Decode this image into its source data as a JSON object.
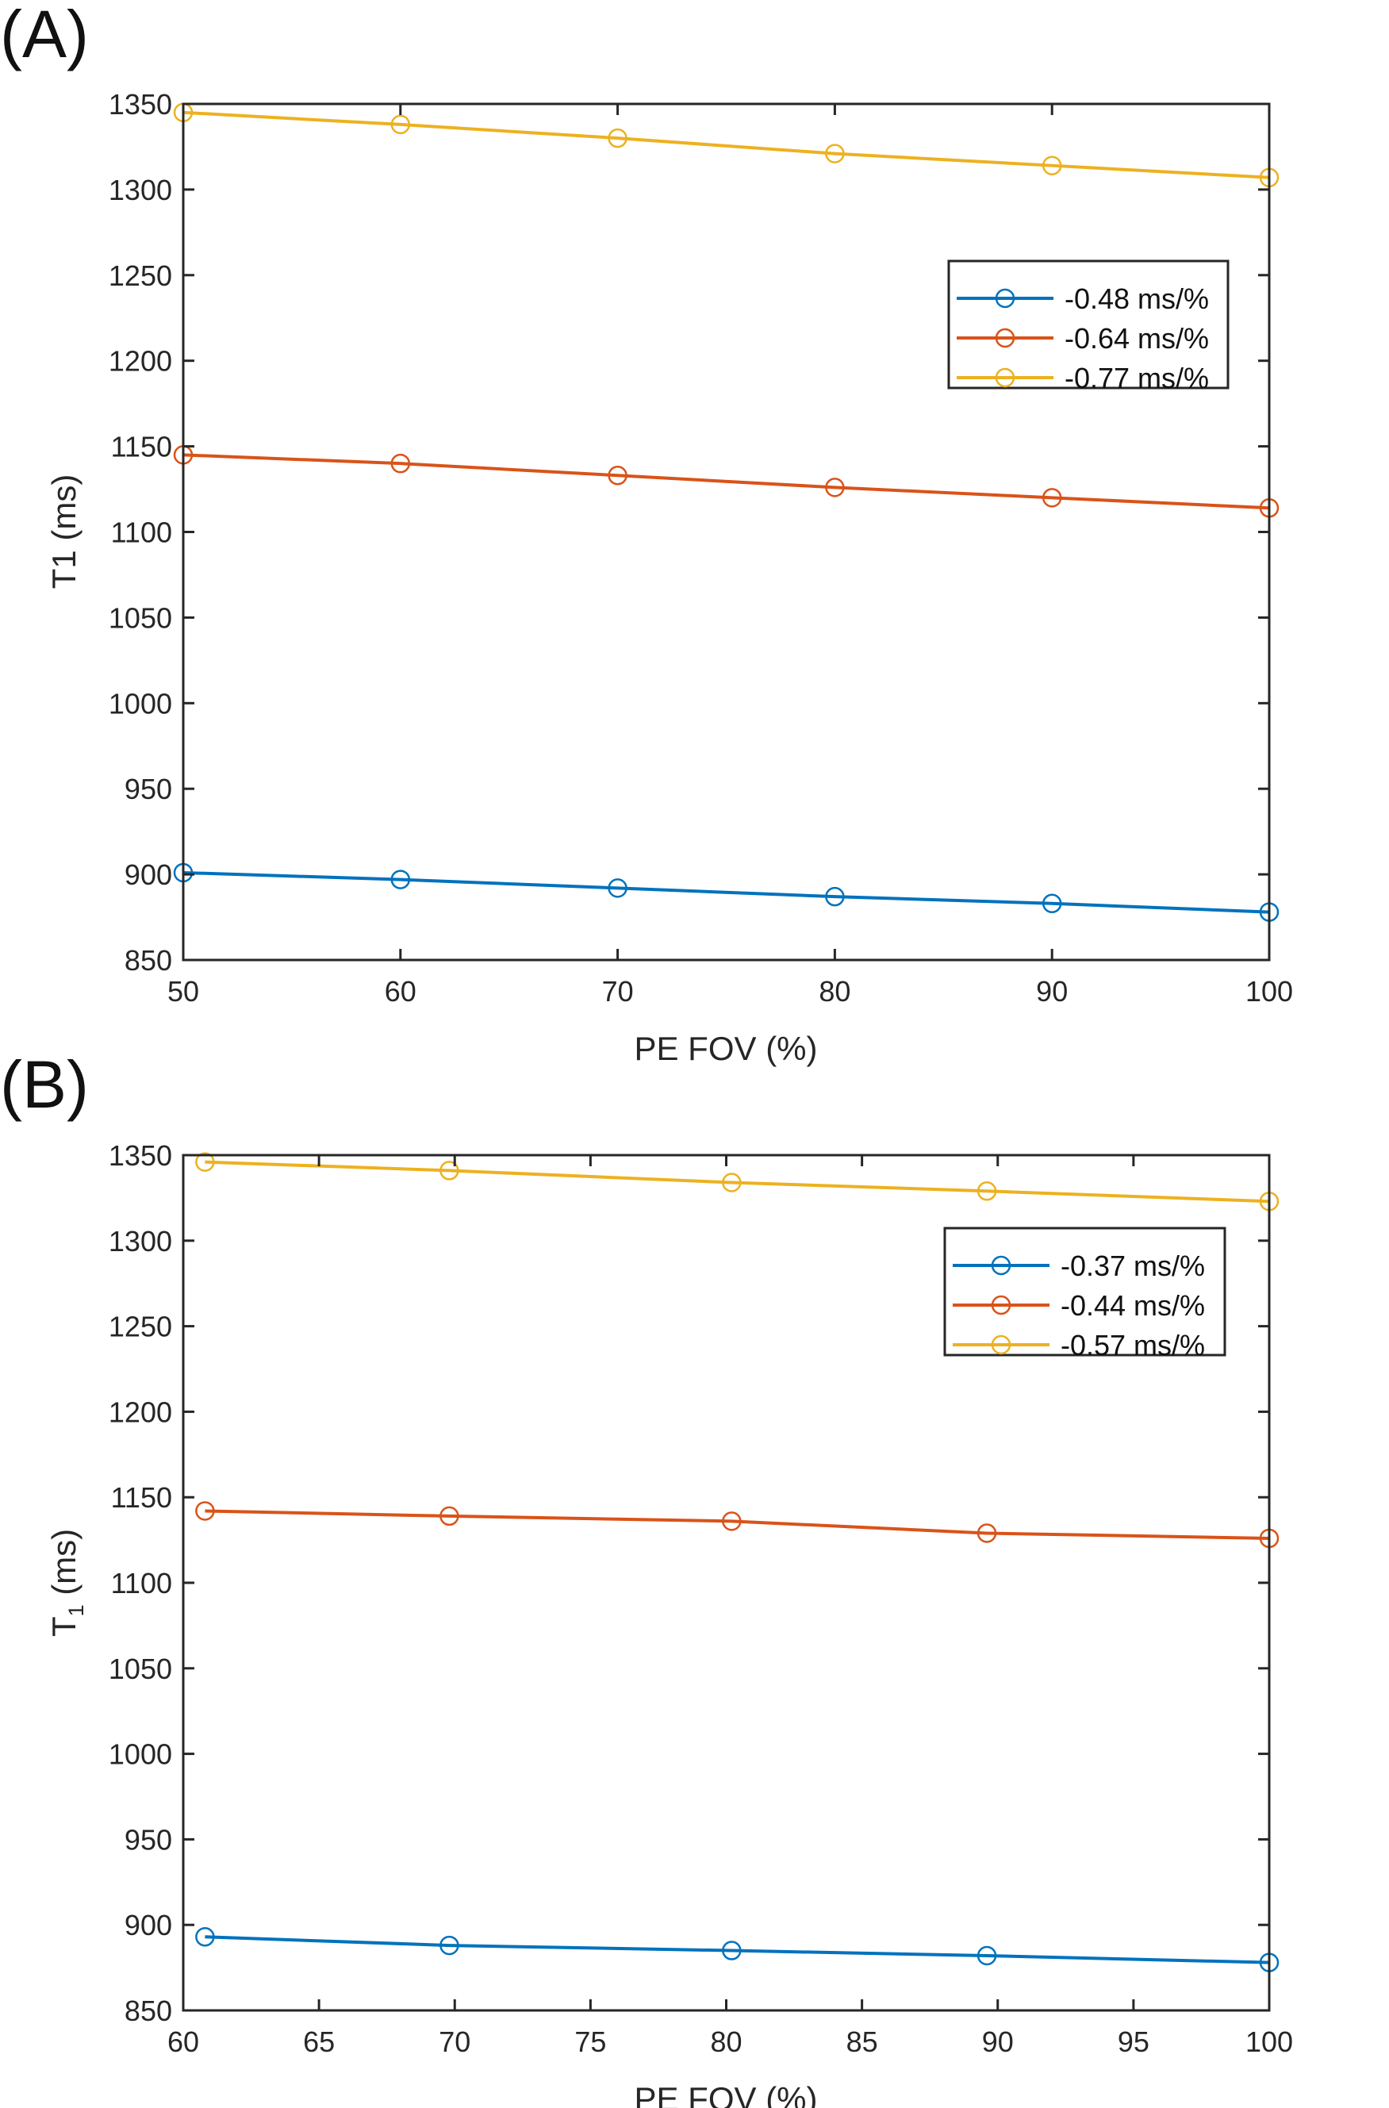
{
  "charts": [
    {
      "panel_label": "(A)",
      "xlabel": "PE FOV (%)",
      "ylabel": "T1 (ms)",
      "ylabel_sub": "",
      "ylabel_unit": "",
      "type": "line",
      "xlim": [
        50,
        100
      ],
      "ylim": [
        850,
        1350
      ],
      "xticks": [
        50,
        60,
        70,
        80,
        90,
        100
      ],
      "yticks": [
        850,
        900,
        950,
        1000,
        1050,
        1100,
        1150,
        1200,
        1250,
        1300,
        1350
      ],
      "legend_position": "upper-right",
      "series": [
        {
          "name": "-0.48 ms/%",
          "color": "#0072BD",
          "x": [
            50,
            60,
            70,
            80,
            90,
            100
          ],
          "y": [
            901,
            897,
            892,
            887,
            883,
            878
          ]
        },
        {
          "name": "-0.64 ms/%",
          "color": "#D95319",
          "x": [
            50,
            60,
            70,
            80,
            90,
            100
          ],
          "y": [
            1145,
            1140,
            1133,
            1126,
            1120,
            1114
          ]
        },
        {
          "name": "-0.77 ms/%",
          "color": "#EDB120",
          "x": [
            50,
            60,
            70,
            80,
            90,
            100
          ],
          "y": [
            1345,
            1338,
            1330,
            1321,
            1314,
            1307
          ]
        }
      ]
    },
    {
      "panel_label": "(B)",
      "xlabel": "PE FOV (%)",
      "ylabel": "T",
      "ylabel_sub": "1",
      "ylabel_unit": " (ms)",
      "type": "line",
      "xlim": [
        60,
        100
      ],
      "ylim": [
        850,
        1350
      ],
      "xticks": [
        60,
        65,
        70,
        75,
        80,
        85,
        90,
        95,
        100
      ],
      "yticks": [
        850,
        900,
        950,
        1000,
        1050,
        1100,
        1150,
        1200,
        1250,
        1300,
        1350
      ],
      "legend_position": "upper-right",
      "series": [
        {
          "name": "-0.37 ms/%",
          "color": "#0072BD",
          "x": [
            60.8,
            69.8,
            80.2,
            89.6,
            100
          ],
          "y": [
            893,
            888,
            885,
            882,
            878
          ]
        },
        {
          "name": "-0.44 ms/%",
          "color": "#D95319",
          "x": [
            60.8,
            69.8,
            80.2,
            89.6,
            100
          ],
          "y": [
            1142,
            1139,
            1136,
            1129,
            1126
          ]
        },
        {
          "name": "-0.57 ms/%",
          "color": "#EDB120",
          "x": [
            60.8,
            69.8,
            80.2,
            89.6,
            100
          ],
          "y": [
            1346,
            1341,
            1334,
            1329,
            1323
          ]
        }
      ]
    }
  ],
  "chart_data": [
    {
      "type": "line",
      "title": "",
      "xlabel": "PE FOV (%)",
      "ylabel": "T1 (ms)",
      "xlim": [
        50,
        100
      ],
      "ylim": [
        850,
        1350
      ],
      "grid": false,
      "legend": "top-right",
      "x": [
        50,
        60,
        70,
        80,
        90,
        100
      ],
      "series": [
        {
          "name": "-0.48 ms/%",
          "values": [
            901,
            897,
            892,
            887,
            883,
            878
          ]
        },
        {
          "name": "-0.64 ms/%",
          "values": [
            1145,
            1140,
            1133,
            1126,
            1120,
            1114
          ]
        },
        {
          "name": "-0.77 ms/%",
          "values": [
            1345,
            1338,
            1330,
            1321,
            1314,
            1307
          ]
        }
      ]
    },
    {
      "type": "line",
      "title": "",
      "xlabel": "PE FOV (%)",
      "ylabel": "T1 (ms)",
      "xlim": [
        60,
        100
      ],
      "ylim": [
        850,
        1350
      ],
      "grid": false,
      "legend": "top-right",
      "x": [
        60.8,
        69.8,
        80.2,
        89.6,
        100
      ],
      "series": [
        {
          "name": "-0.37 ms/%",
          "values": [
            893,
            888,
            885,
            882,
            878
          ]
        },
        {
          "name": "-0.44 ms/%",
          "values": [
            1142,
            1139,
            1136,
            1129,
            1126
          ]
        },
        {
          "name": "-0.57 ms/%",
          "values": [
            1346,
            1341,
            1334,
            1329,
            1323
          ]
        }
      ]
    }
  ]
}
